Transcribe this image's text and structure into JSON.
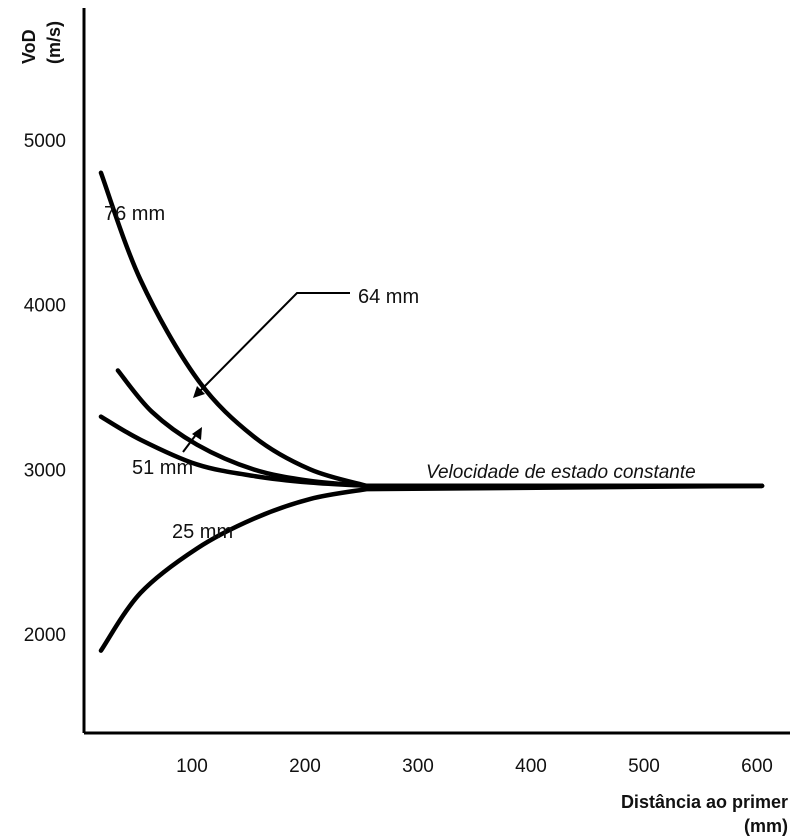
{
  "chart_data": {
    "type": "line",
    "title": "",
    "xlabel": "Distância ao primer",
    "xunit": "(mm)",
    "ylabel": "VoD",
    "yunit": "(m/s)",
    "xlim": [
      0,
      600
    ],
    "ylim": [
      1400,
      5800
    ],
    "x_ticks": [
      100,
      200,
      300,
      400,
      500,
      600
    ],
    "y_ticks": [
      2000,
      3000,
      4000,
      5000
    ],
    "grid": false,
    "series": [
      {
        "name": "76 mm",
        "x": [
          15,
          50,
          100,
          150,
          200,
          250,
          600
        ],
        "y": [
          4800,
          4150,
          3550,
          3200,
          3000,
          2900,
          2900
        ]
      },
      {
        "name": "64 mm",
        "x": [
          30,
          60,
          100,
          150,
          200,
          250,
          600
        ],
        "y": [
          3600,
          3350,
          3150,
          3000,
          2930,
          2900,
          2900
        ]
      },
      {
        "name": "51 mm",
        "x": [
          15,
          50,
          100,
          150,
          200,
          250,
          600
        ],
        "y": [
          3320,
          3180,
          3030,
          2960,
          2920,
          2900,
          2900
        ]
      },
      {
        "name": "25 mm",
        "x": [
          15,
          50,
          100,
          150,
          200,
          250,
          600
        ],
        "y": [
          1900,
          2250,
          2520,
          2700,
          2820,
          2880,
          2900
        ]
      }
    ],
    "annotations": [
      {
        "text": "Velocidade de estado constante"
      }
    ]
  }
}
